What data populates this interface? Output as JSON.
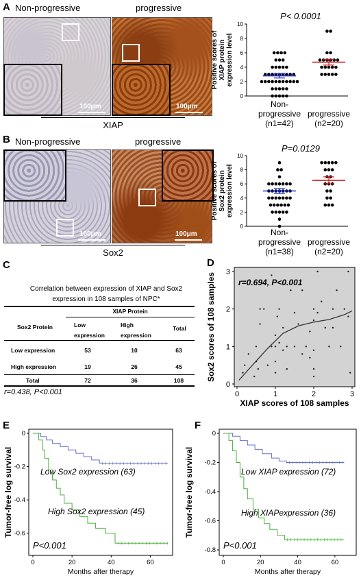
{
  "panels": {
    "A": {
      "letter": "A",
      "left_photo_label": "Non-progressive",
      "right_photo_label": "progressive",
      "scale_label": "100μm",
      "marker_label": "XIAP",
      "chart_data": {
        "type": "scatter",
        "title": "P< 0.0001",
        "ylabel": "Positive scores of XIAP protein expression level",
        "ylim": [
          0,
          10
        ],
        "yticks": [
          "0",
          "2",
          "4",
          "6",
          "8",
          "10"
        ],
        "categories": [
          "Non-progressive (n1=42)",
          "progressive (n2=20)"
        ],
        "category_lines": [
          [
            "Non-",
            "progressive",
            "(n1=42)"
          ],
          [
            "progressive",
            "(n2=20)"
          ]
        ],
        "series": [
          {
            "values": [
              6,
              6,
              6,
              6,
              5,
              5,
              5,
              4,
              4,
              4,
              4,
              4,
              3,
              3,
              3,
              3,
              3,
              3,
              3,
              3,
              3,
              2,
              2,
              2,
              2,
              2,
              2,
              2,
              2,
              2,
              2,
              2,
              1,
              1,
              1,
              1,
              1,
              0,
              0,
              0,
              0,
              0
            ],
            "mean": 2.8,
            "sem": 0.3,
            "color": "#1f2fd0"
          },
          {
            "values": [
              9,
              9,
              6,
              6,
              5,
              5,
              5,
              5,
              5,
              5,
              4,
              4,
              4,
              4,
              4,
              3,
              3,
              3,
              3,
              3
            ],
            "mean": 4.7,
            "sem": 0.4,
            "color": "#d21f1f"
          }
        ]
      }
    },
    "B": {
      "letter": "B",
      "left_photo_label": "Non-progressive",
      "right_photo_label": "progressive",
      "scale_label": "100μm",
      "marker_label": "Sox2",
      "chart_data": {
        "type": "scatter",
        "title": "P=0.0129",
        "ylabel": "Positive scores of Sox2 protein expression level",
        "ylim": [
          0,
          10
        ],
        "yticks": [
          "0",
          "2",
          "4",
          "6",
          "8",
          "10"
        ],
        "categories": [
          "Non-progressive (n1=38)",
          "progressive (n2=20)"
        ],
        "category_lines": [
          [
            "Non-",
            "progressive",
            "(n1=38)"
          ],
          [
            "progressive",
            "(n2=20)"
          ]
        ],
        "series": [
          {
            "values": [
              9,
              8,
              8,
              7,
              6,
              6,
              6,
              6,
              6,
              6,
              6,
              5,
              5,
              5,
              5,
              5,
              5,
              5,
              4,
              4,
              4,
              4,
              4,
              4,
              4,
              3,
              3,
              3,
              3,
              3,
              3,
              2,
              2,
              2,
              2,
              2,
              1,
              0
            ],
            "mean": 5.0,
            "sem": 0.35,
            "color": "#1f2fd0"
          },
          {
            "values": [
              9,
              9,
              9,
              9,
              9,
              8,
              8,
              8,
              7,
              7,
              6,
              6,
              6,
              5,
              5,
              4,
              4,
              3,
              3,
              3
            ],
            "mean": 6.5,
            "sem": 0.5,
            "color": "#d21f1f"
          }
        ]
      }
    },
    "C": {
      "letter": "C",
      "title_lines": [
        "Correlation between expression of XIAP and Sox2",
        "expression in 108 samples of NPC*"
      ],
      "col_group": "XIAP Protein",
      "row_header": "Sox2 Protein",
      "col_headers": [
        "Low expression",
        "High expression",
        "Total"
      ],
      "rows": [
        {
          "label": "Low expression",
          "cells": [
            "53",
            "10",
            "63"
          ]
        },
        {
          "label": "High expression",
          "cells": [
            "19",
            "26",
            "45"
          ]
        },
        {
          "label": "Total",
          "cells": [
            "72",
            "36",
            "108"
          ]
        }
      ],
      "footer": "r=0.438, P<0.001"
    },
    "D": {
      "letter": "D",
      "chart_data": {
        "type": "scatter",
        "annotation": "r=0.694, P<0.001",
        "xlabel": "XIAP scores of 108 samples",
        "ylabel": "Sox2 scores of 108 samples",
        "xlim": [
          0,
          3
        ],
        "ylim": [
          0,
          3
        ],
        "xticks": [
          "0",
          "1",
          "2",
          "3"
        ],
        "yticks": [
          "0",
          "1",
          "2",
          "3"
        ],
        "points": [
          [
            0.15,
            0.3
          ],
          [
            0.2,
            0.5
          ],
          [
            0.3,
            0.8
          ],
          [
            0.45,
            0.2
          ],
          [
            0.5,
            0.6
          ],
          [
            0.5,
            1.0
          ],
          [
            0.55,
            0.4
          ],
          [
            0.6,
            1.6
          ],
          [
            0.6,
            2.0
          ],
          [
            0.7,
            2.0
          ],
          [
            0.8,
            0.5
          ],
          [
            0.9,
            1.0
          ],
          [
            0.9,
            2.9
          ],
          [
            1.0,
            0.3
          ],
          [
            1.0,
            0.6
          ],
          [
            1.0,
            1.0
          ],
          [
            1.0,
            1.3
          ],
          [
            1.05,
            1.8
          ],
          [
            1.1,
            1.1
          ],
          [
            1.1,
            2.0
          ],
          [
            1.2,
            0.9
          ],
          [
            1.2,
            1.5
          ],
          [
            1.3,
            0.4
          ],
          [
            1.3,
            1.0
          ],
          [
            1.4,
            2.5
          ],
          [
            1.5,
            1.0
          ],
          [
            1.5,
            1.9
          ],
          [
            1.6,
            1.6
          ],
          [
            1.7,
            0.8
          ],
          [
            1.7,
            2.5
          ],
          [
            1.8,
            1.0
          ],
          [
            1.9,
            0.7
          ],
          [
            1.9,
            1.4
          ],
          [
            2.0,
            0.2
          ],
          [
            2.0,
            0.4
          ],
          [
            2.0,
            0.9
          ],
          [
            2.0,
            1.7
          ],
          [
            2.0,
            2.0
          ],
          [
            2.1,
            1.9
          ],
          [
            2.1,
            3.0
          ],
          [
            2.2,
            2.2
          ],
          [
            2.3,
            1.5
          ],
          [
            2.4,
            1.0
          ],
          [
            2.5,
            1.5
          ],
          [
            2.5,
            2.0
          ],
          [
            2.6,
            2.5
          ],
          [
            2.7,
            1.0
          ],
          [
            2.8,
            2.0
          ],
          [
            2.9,
            3.0
          ],
          [
            2.9,
            1.8
          ],
          [
            2.95,
            0.3
          ]
        ],
        "fit_curve": [
          [
            0.05,
            0.1
          ],
          [
            0.4,
            0.5
          ],
          [
            0.8,
            0.95
          ],
          [
            1.2,
            1.35
          ],
          [
            1.6,
            1.55
          ],
          [
            2.0,
            1.65
          ],
          [
            2.4,
            1.72
          ],
          [
            2.8,
            1.85
          ],
          [
            3.0,
            1.95
          ]
        ]
      }
    },
    "E": {
      "letter": "E",
      "chart_data": {
        "type": "line",
        "xlabel": "Months after therapy",
        "ylabel": "Tumor-free log survival",
        "xlim": [
          0,
          70
        ],
        "ylim": [
          -0.7,
          0
        ],
        "xticks": [
          "0",
          "20",
          "40",
          "60"
        ],
        "yticks": [
          "0",
          "-0.2",
          "-0.4",
          "-0.6"
        ],
        "pvalue": "P<0.001",
        "series": [
          {
            "name": "Low Sox2 expression (63)",
            "color": "#6570c8",
            "steps": [
              [
                0,
                0
              ],
              [
                4,
                -0.02
              ],
              [
                7,
                -0.04
              ],
              [
                10,
                -0.06
              ],
              [
                14,
                -0.08
              ],
              [
                18,
                -0.1
              ],
              [
                22,
                -0.12
              ],
              [
                26,
                -0.14
              ],
              [
                30,
                -0.16
              ],
              [
                34,
                -0.18
              ],
              [
                69,
                -0.18
              ]
            ]
          },
          {
            "name": "High Sox2 expression (45)",
            "color": "#49b23a",
            "steps": [
              [
                0,
                0
              ],
              [
                3,
                -0.04
              ],
              [
                5,
                -0.1
              ],
              [
                6,
                -0.15
              ],
              [
                8,
                -0.22
              ],
              [
                10,
                -0.28
              ],
              [
                12,
                -0.33
              ],
              [
                14,
                -0.37
              ],
              [
                16,
                -0.42
              ],
              [
                20,
                -0.46
              ],
              [
                24,
                -0.5
              ],
              [
                28,
                -0.54
              ],
              [
                32,
                -0.57
              ],
              [
                37,
                -0.6
              ],
              [
                42,
                -0.66
              ],
              [
                69,
                -0.66
              ]
            ]
          }
        ]
      }
    },
    "F": {
      "letter": "F",
      "chart_data": {
        "type": "line",
        "xlabel": "Months after therapy",
        "ylabel": "Tumor-free log survival",
        "xlim": [
          0,
          70
        ],
        "ylim": [
          -0.8,
          0
        ],
        "xticks": [
          "0",
          "20",
          "40",
          "60"
        ],
        "yticks": [
          "0",
          "-0.2",
          "-0.4",
          "-0.6",
          "-0.8"
        ],
        "pvalue": "P<0.001",
        "series": [
          {
            "name": "Low XIAP expression (72)",
            "color": "#6570c8",
            "steps": [
              [
                0,
                0
              ],
              [
                5,
                -0.02
              ],
              [
                9,
                -0.05
              ],
              [
                13,
                -0.08
              ],
              [
                17,
                -0.11
              ],
              [
                21,
                -0.14
              ],
              [
                26,
                -0.17
              ],
              [
                30,
                -0.19
              ],
              [
                34,
                -0.2
              ],
              [
                65,
                -0.2
              ]
            ]
          },
          {
            "name": "High XIAPexpression (36)",
            "color": "#49b23a",
            "steps": [
              [
                0,
                0
              ],
              [
                3,
                -0.05
              ],
              [
                5,
                -0.12
              ],
              [
                7,
                -0.2
              ],
              [
                9,
                -0.3
              ],
              [
                11,
                -0.38
              ],
              [
                13,
                -0.45
              ],
              [
                16,
                -0.52
              ],
              [
                19,
                -0.58
              ],
              [
                22,
                -0.62
              ],
              [
                25,
                -0.66
              ],
              [
                29,
                -0.7
              ],
              [
                33,
                -0.73
              ],
              [
                65,
                -0.73
              ]
            ]
          }
        ]
      }
    }
  }
}
